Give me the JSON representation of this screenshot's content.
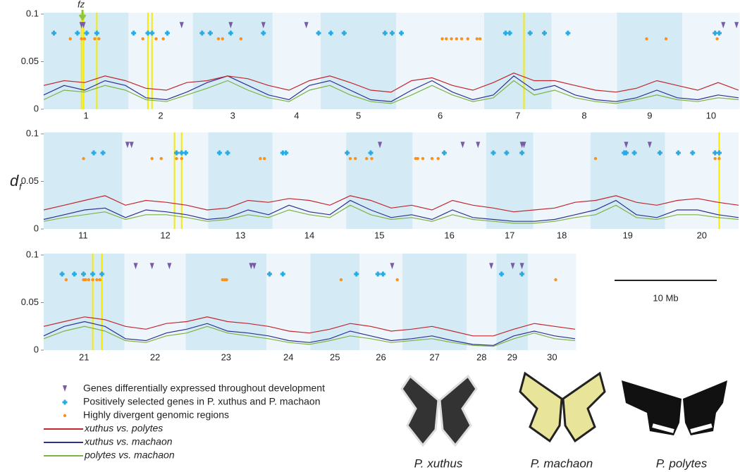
{
  "chart_data": [
    {
      "type": "line",
      "ylim": [
        0,
        0.1
      ],
      "yticks": [
        0,
        0.05,
        0.1
      ],
      "chromosomes": [
        "1",
        "2",
        "3",
        "4",
        "5",
        "6",
        "7",
        "8",
        "9",
        "10"
      ],
      "boundaries": [
        0,
        8.3,
        14.6,
        22.4,
        27.1,
        34.5,
        43.1,
        49.7,
        56.1,
        62.5,
        68.1
      ],
      "annotation": {
        "text": "fz",
        "x": 3.8
      },
      "highlights": [
        3.7,
        3.9,
        5.2,
        10.2,
        10.6,
        47.0
      ],
      "markers": [
        {
          "x": [
            3.7,
            3.9,
            13.5,
            18.3,
            21.5,
            25.7,
            66.5,
            67.8
          ]
        },
        {
          "x": [
            1.0,
            3.3,
            4.2,
            5.2,
            8.8,
            10.2,
            10.6,
            12.1,
            15.5,
            16.3,
            18.3,
            21.5,
            26.9,
            28.1,
            29.4,
            33.4,
            34.1,
            35.0,
            45.2,
            45.6,
            47.6,
            49.0,
            51.3,
            65.7,
            66.1
          ]
        },
        {
          "x": [
            2.6,
            3.7,
            4.0,
            5.0,
            5.4,
            9.7,
            11.0,
            11.7,
            17.1,
            17.5,
            19.3,
            39.0,
            39.4,
            39.9,
            40.4,
            40.9,
            41.5,
            42.4,
            42.7,
            59.0,
            60.9,
            65.9
          ]
        }
      ],
      "x": [
        0,
        2,
        4,
        6,
        8,
        10,
        12,
        14,
        16,
        18,
        20,
        22,
        24,
        26,
        28,
        30,
        32,
        34,
        36,
        38,
        40,
        42,
        44,
        46,
        48,
        50,
        52,
        54,
        56,
        58,
        60,
        62,
        64,
        66,
        68
      ],
      "series": [
        {
          "values": [
            0.025,
            0.03,
            0.028,
            0.035,
            0.03,
            0.022,
            0.02,
            0.028,
            0.03,
            0.035,
            0.032,
            0.025,
            0.02,
            0.03,
            0.035,
            0.028,
            0.02,
            0.018,
            0.03,
            0.033,
            0.025,
            0.02,
            0.028,
            0.038,
            0.03,
            0.03,
            0.025,
            0.02,
            0.018,
            0.022,
            0.03,
            0.025,
            0.02,
            0.028,
            0.02
          ]
        },
        {
          "values": [
            0.015,
            0.025,
            0.02,
            0.03,
            0.025,
            0.012,
            0.01,
            0.018,
            0.028,
            0.035,
            0.025,
            0.015,
            0.01,
            0.025,
            0.03,
            0.02,
            0.01,
            0.008,
            0.02,
            0.03,
            0.018,
            0.01,
            0.015,
            0.035,
            0.02,
            0.025,
            0.015,
            0.01,
            0.008,
            0.012,
            0.02,
            0.012,
            0.01,
            0.015,
            0.012
          ]
        },
        {
          "values": [
            0.01,
            0.02,
            0.018,
            0.025,
            0.02,
            0.01,
            0.008,
            0.015,
            0.022,
            0.03,
            0.02,
            0.012,
            0.008,
            0.02,
            0.025,
            0.015,
            0.008,
            0.006,
            0.015,
            0.025,
            0.015,
            0.008,
            0.012,
            0.03,
            0.015,
            0.02,
            0.012,
            0.008,
            0.006,
            0.01,
            0.015,
            0.01,
            0.008,
            0.012,
            0.01
          ]
        }
      ]
    },
    {
      "type": "line",
      "ylim": [
        0,
        0.1
      ],
      "yticks": [
        0,
        0.05,
        0.1
      ],
      "chromosomes": [
        "11",
        "12",
        "13",
        "14",
        "15",
        "16",
        "17",
        "18",
        "19",
        "20"
      ],
      "boundaries": [
        0,
        7.7,
        16.1,
        22.4,
        29.6,
        36.1,
        43.3,
        47.9,
        53.5,
        60.8,
        68.0
      ],
      "highlights": [
        12.8,
        13.5,
        66.1
      ],
      "markers": [
        {
          "x": [
            8.2,
            8.6,
            32.9,
            41.0,
            42.5,
            46.8,
            47.0,
            57.0,
            59.3
          ]
        },
        {
          "x": [
            4.9,
            5.8,
            13.0,
            13.5,
            13.9,
            17.2,
            18.0,
            23.4,
            23.7,
            29.7,
            32.0,
            39.2,
            44.0,
            45.3,
            46.8,
            56.8,
            57.0,
            57.8,
            60.3,
            62.1,
            63.5,
            65.7,
            66.1
          ]
        },
        {
          "x": [
            3.9,
            10.6,
            11.5,
            13.0,
            13.5,
            21.2,
            21.6,
            30.0,
            30.5,
            31.6,
            32.1,
            36.4,
            36.6,
            37.1,
            38.0,
            38.6,
            54.0,
            65.7,
            66.1
          ]
        }
      ],
      "x": [
        0,
        2,
        4,
        6,
        8,
        10,
        12,
        14,
        16,
        18,
        20,
        22,
        24,
        26,
        28,
        30,
        32,
        34,
        36,
        38,
        40,
        42,
        44,
        46,
        48,
        50,
        52,
        54,
        56,
        58,
        60,
        62,
        64,
        66,
        68
      ],
      "series": [
        {
          "values": [
            0.02,
            0.025,
            0.03,
            0.035,
            0.025,
            0.03,
            0.028,
            0.025,
            0.02,
            0.022,
            0.03,
            0.028,
            0.032,
            0.03,
            0.025,
            0.035,
            0.03,
            0.022,
            0.025,
            0.02,
            0.03,
            0.025,
            0.022,
            0.018,
            0.02,
            0.022,
            0.028,
            0.03,
            0.035,
            0.028,
            0.025,
            0.03,
            0.032,
            0.028,
            0.025
          ]
        },
        {
          "values": [
            0.01,
            0.015,
            0.02,
            0.022,
            0.012,
            0.02,
            0.018,
            0.015,
            0.01,
            0.012,
            0.02,
            0.015,
            0.025,
            0.018,
            0.015,
            0.03,
            0.02,
            0.012,
            0.015,
            0.01,
            0.02,
            0.012,
            0.01,
            0.008,
            0.008,
            0.01,
            0.015,
            0.02,
            0.03,
            0.015,
            0.012,
            0.02,
            0.02,
            0.015,
            0.012
          ]
        },
        {
          "values": [
            0.008,
            0.012,
            0.015,
            0.018,
            0.01,
            0.015,
            0.015,
            0.012,
            0.008,
            0.01,
            0.015,
            0.012,
            0.02,
            0.015,
            0.012,
            0.025,
            0.015,
            0.01,
            0.012,
            0.008,
            0.015,
            0.01,
            0.008,
            0.006,
            0.006,
            0.008,
            0.012,
            0.015,
            0.025,
            0.012,
            0.01,
            0.015,
            0.015,
            0.012,
            0.01
          ]
        }
      ]
    },
    {
      "type": "line",
      "ylim": [
        0,
        0.1
      ],
      "yticks": [
        0,
        0.05,
        0.1
      ],
      "chromosomes": [
        "21",
        "22",
        "23",
        "24",
        "25",
        "26",
        "27",
        "28",
        "29",
        "30"
      ],
      "boundaries": [
        0,
        7.9,
        13.9,
        21.8,
        26.1,
        30.9,
        35.1,
        41.4,
        44.3,
        47.4,
        52.1
      ],
      "highlights": [
        4.8,
        5.7
      ],
      "markers": [
        {
          "x": [
            9.0,
            10.6,
            12.3,
            20.3,
            20.6,
            34.1,
            43.8,
            45.9,
            46.8
          ]
        },
        {
          "x": [
            1.8,
            3.0,
            3.9,
            4.8,
            5.7,
            22.1,
            23.4,
            30.6,
            32.7,
            33.2,
            44.8,
            46.8
          ]
        },
        {
          "x": [
            2.2,
            3.9,
            4.1,
            4.4,
            4.8,
            5.2,
            5.5,
            17.5,
            17.7,
            17.9,
            29.1,
            34.6,
            50.1
          ]
        }
      ],
      "x": [
        0,
        2,
        4,
        6,
        8,
        10,
        12,
        14,
        16,
        18,
        20,
        22,
        24,
        26,
        28,
        30,
        32,
        34,
        36,
        38,
        40,
        42,
        44,
        46,
        48,
        50,
        52
      ],
      "series": [
        {
          "values": [
            0.025,
            0.03,
            0.035,
            0.032,
            0.025,
            0.022,
            0.028,
            0.03,
            0.035,
            0.03,
            0.028,
            0.025,
            0.02,
            0.018,
            0.022,
            0.028,
            0.025,
            0.02,
            0.022,
            0.025,
            0.02,
            0.015,
            0.015,
            0.022,
            0.028,
            0.025,
            0.022
          ]
        },
        {
          "values": [
            0.015,
            0.025,
            0.03,
            0.025,
            0.012,
            0.01,
            0.018,
            0.022,
            0.028,
            0.02,
            0.018,
            0.015,
            0.01,
            0.008,
            0.012,
            0.02,
            0.015,
            0.01,
            0.012,
            0.015,
            0.01,
            0.006,
            0.005,
            0.015,
            0.02,
            0.015,
            0.012
          ]
        },
        {
          "values": [
            0.012,
            0.02,
            0.025,
            0.02,
            0.01,
            0.008,
            0.015,
            0.018,
            0.025,
            0.018,
            0.015,
            0.012,
            0.008,
            0.006,
            0.01,
            0.015,
            0.012,
            0.008,
            0.01,
            0.012,
            0.008,
            0.005,
            0.004,
            0.012,
            0.018,
            0.012,
            0.01
          ]
        }
      ]
    }
  ],
  "y_label": "d",
  "y_label_sub": "f",
  "highlight_color": "#f5ea00",
  "band_colors": [
    "#d4ebf6",
    "#eef6fb"
  ],
  "legend": [
    {
      "name": "Genes differentially expressed throughout development",
      "color": "#7b5aa6",
      "shape": "triangle",
      "y": 0.088
    },
    {
      "name": "Positively selected genes in P. xuthus and P. machaon",
      "color": "#29abe2",
      "shape": "plus",
      "y": 0.08
    },
    {
      "name": "Highly divergent genomic regions",
      "color": "#f7931e",
      "shape": "dot",
      "y": 0.074
    },
    {
      "name": "xuthus vs. polytes",
      "color": "#c1272d",
      "shape": "line"
    },
    {
      "name": "xuthus vs. machaon",
      "color": "#2e3192",
      "shape": "line"
    },
    {
      "name": "polytes vs. machaon",
      "color": "#7cb342",
      "shape": "line"
    }
  ],
  "scale_bar": {
    "label": "10 Mb",
    "length": 10
  },
  "photos": [
    "P. xuthus",
    "P. machaon",
    "P. polytes"
  ]
}
